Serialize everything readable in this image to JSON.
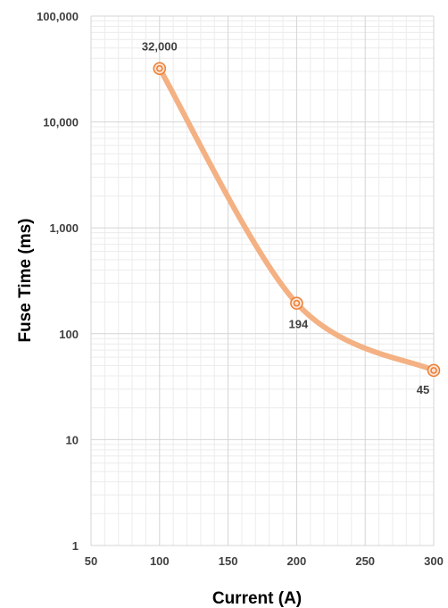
{
  "chart_data": {
    "type": "line",
    "title": "",
    "xlabel": "Current (A)",
    "ylabel": "Fuse Time (ms)",
    "x_scale": "linear",
    "y_scale": "log",
    "xlim": [
      50,
      300
    ],
    "ylim": [
      1,
      100000
    ],
    "x_ticks": [
      50,
      100,
      150,
      200,
      250,
      300
    ],
    "x_tick_labels": [
      "50",
      "100",
      "150",
      "200",
      "250",
      "300"
    ],
    "y_ticks": [
      1,
      10,
      100,
      1000,
      10000,
      100000
    ],
    "y_tick_labels": [
      "1",
      "10",
      "100",
      "1,000",
      "10,000",
      "100,000"
    ],
    "grid": true,
    "legend": "none",
    "series": [
      {
        "x": [
          100,
          200,
          300
        ],
        "y": [
          32000,
          194,
          45
        ],
        "data_labels": [
          "32,000",
          "194",
          "45"
        ],
        "color": "#f4b183",
        "marker_color": "#ed7d31",
        "smooth": true
      }
    ]
  }
}
